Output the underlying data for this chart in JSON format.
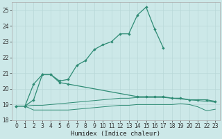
{
  "xlabel": "Humidex (Indice chaleur)",
  "x": [
    0,
    1,
    2,
    3,
    4,
    5,
    6,
    7,
    8,
    9,
    10,
    11,
    12,
    13,
    14,
    15,
    16,
    17,
    18,
    19,
    20,
    21,
    22,
    23
  ],
  "line1_x": [
    0,
    1,
    2,
    3,
    4,
    5,
    6,
    7,
    8,
    9,
    10,
    11,
    12,
    13,
    14,
    15,
    16,
    17
  ],
  "line1_y": [
    18.9,
    18.9,
    19.3,
    20.9,
    20.9,
    20.5,
    20.6,
    21.5,
    21.8,
    22.5,
    22.8,
    23.0,
    23.5,
    23.5,
    24.7,
    25.2,
    23.8,
    22.6
  ],
  "line2_x": [
    0,
    1,
    2,
    3,
    4,
    5,
    6,
    14,
    15,
    16,
    17,
    18,
    19,
    20,
    21,
    22,
    23
  ],
  "line2_y": [
    18.9,
    18.9,
    20.3,
    20.9,
    20.9,
    20.4,
    20.3,
    19.5,
    19.5,
    19.5,
    19.5,
    19.4,
    19.4,
    19.3,
    19.3,
    19.3,
    19.2
  ],
  "line3_x": [
    0,
    1,
    2,
    3,
    4,
    5,
    6,
    7,
    8,
    9,
    10,
    11,
    12,
    13,
    14,
    15,
    16,
    17,
    18,
    19,
    20,
    21,
    22,
    23
  ],
  "line3_y": [
    18.9,
    18.9,
    18.95,
    18.95,
    19.0,
    19.05,
    19.1,
    19.15,
    19.2,
    19.25,
    19.3,
    19.35,
    19.4,
    19.4,
    19.45,
    19.45,
    19.45,
    19.45,
    19.4,
    19.35,
    19.3,
    19.25,
    19.2,
    19.15
  ],
  "line4_x": [
    0,
    1,
    2,
    3,
    4,
    5,
    6,
    7,
    8,
    9,
    10,
    11,
    12,
    13,
    14,
    15,
    16,
    17,
    18,
    19,
    20,
    21,
    22,
    23
  ],
  "line4_y": [
    18.9,
    18.9,
    18.65,
    18.65,
    18.65,
    18.65,
    18.65,
    18.7,
    18.75,
    18.8,
    18.85,
    18.9,
    18.95,
    18.95,
    19.0,
    19.0,
    19.0,
    19.0,
    19.0,
    19.05,
    19.0,
    18.85,
    18.6,
    18.7
  ],
  "color": "#2e8b74",
  "bg_color": "#cce8e8",
  "grid_color": "#b8d8d8",
  "ylim": [
    18,
    25.5
  ],
  "xlim": [
    -0.5,
    23.5
  ],
  "yticks": [
    18,
    19,
    20,
    21,
    22,
    23,
    24,
    25
  ],
  "xticks": [
    0,
    1,
    2,
    3,
    4,
    5,
    6,
    7,
    8,
    9,
    10,
    11,
    12,
    13,
    14,
    15,
    16,
    17,
    18,
    19,
    20,
    21,
    22,
    23
  ],
  "tick_fontsize": 5.5,
  "label_fontsize": 6.5
}
